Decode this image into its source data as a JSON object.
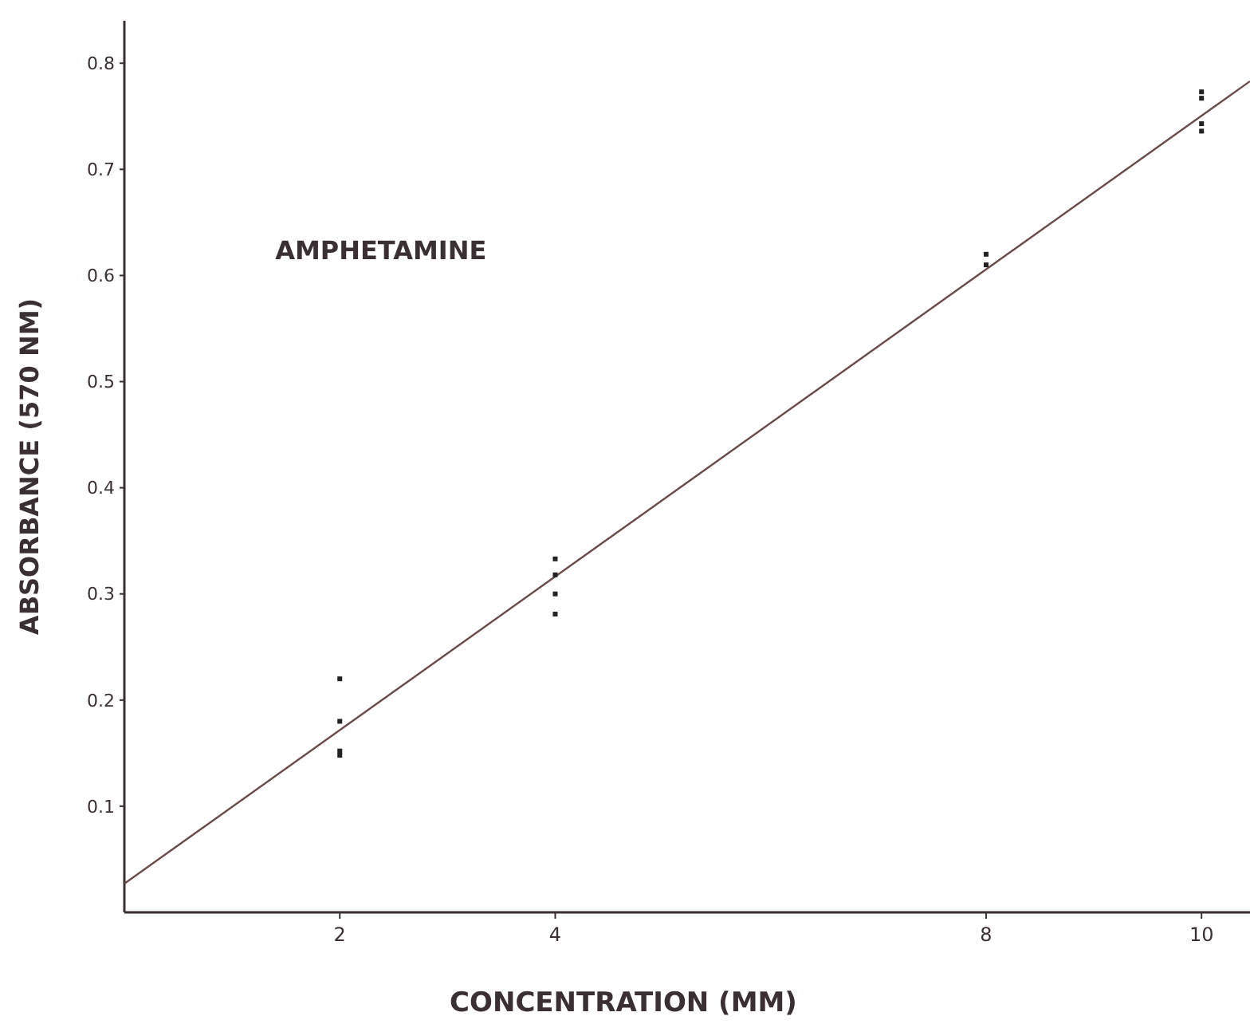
{
  "chart_data": {
    "type": "scatter",
    "title": "AMPHETAMINE",
    "xlabel": "CONCENTRATION (MM)",
    "ylabel": "ABSORBANCE (570 NM)",
    "xlim": [
      0,
      10.45
    ],
    "ylim": [
      0,
      0.84
    ],
    "xticks": [
      2,
      4,
      8,
      10
    ],
    "yticks": [
      0.1,
      0.2,
      0.3,
      0.4,
      0.5,
      0.6,
      0.7,
      0.8
    ],
    "grid": false,
    "series": [
      {
        "marker": "square",
        "color": "#222222",
        "x": [
          2,
          2,
          2,
          2,
          4,
          4,
          4,
          4,
          8,
          8,
          10,
          10,
          10,
          10
        ],
        "values": [
          0.22,
          0.18,
          0.152,
          0.148,
          0.333,
          0.318,
          0.3,
          0.281,
          0.62,
          0.61,
          0.773,
          0.767,
          0.743,
          0.736
        ]
      },
      {
        "type": "line",
        "marker": "none",
        "color": "#6b4a4a",
        "line_style": "solid",
        "x": [
          0,
          10.45
        ],
        "values": [
          0.027,
          0.783
        ]
      }
    ]
  }
}
